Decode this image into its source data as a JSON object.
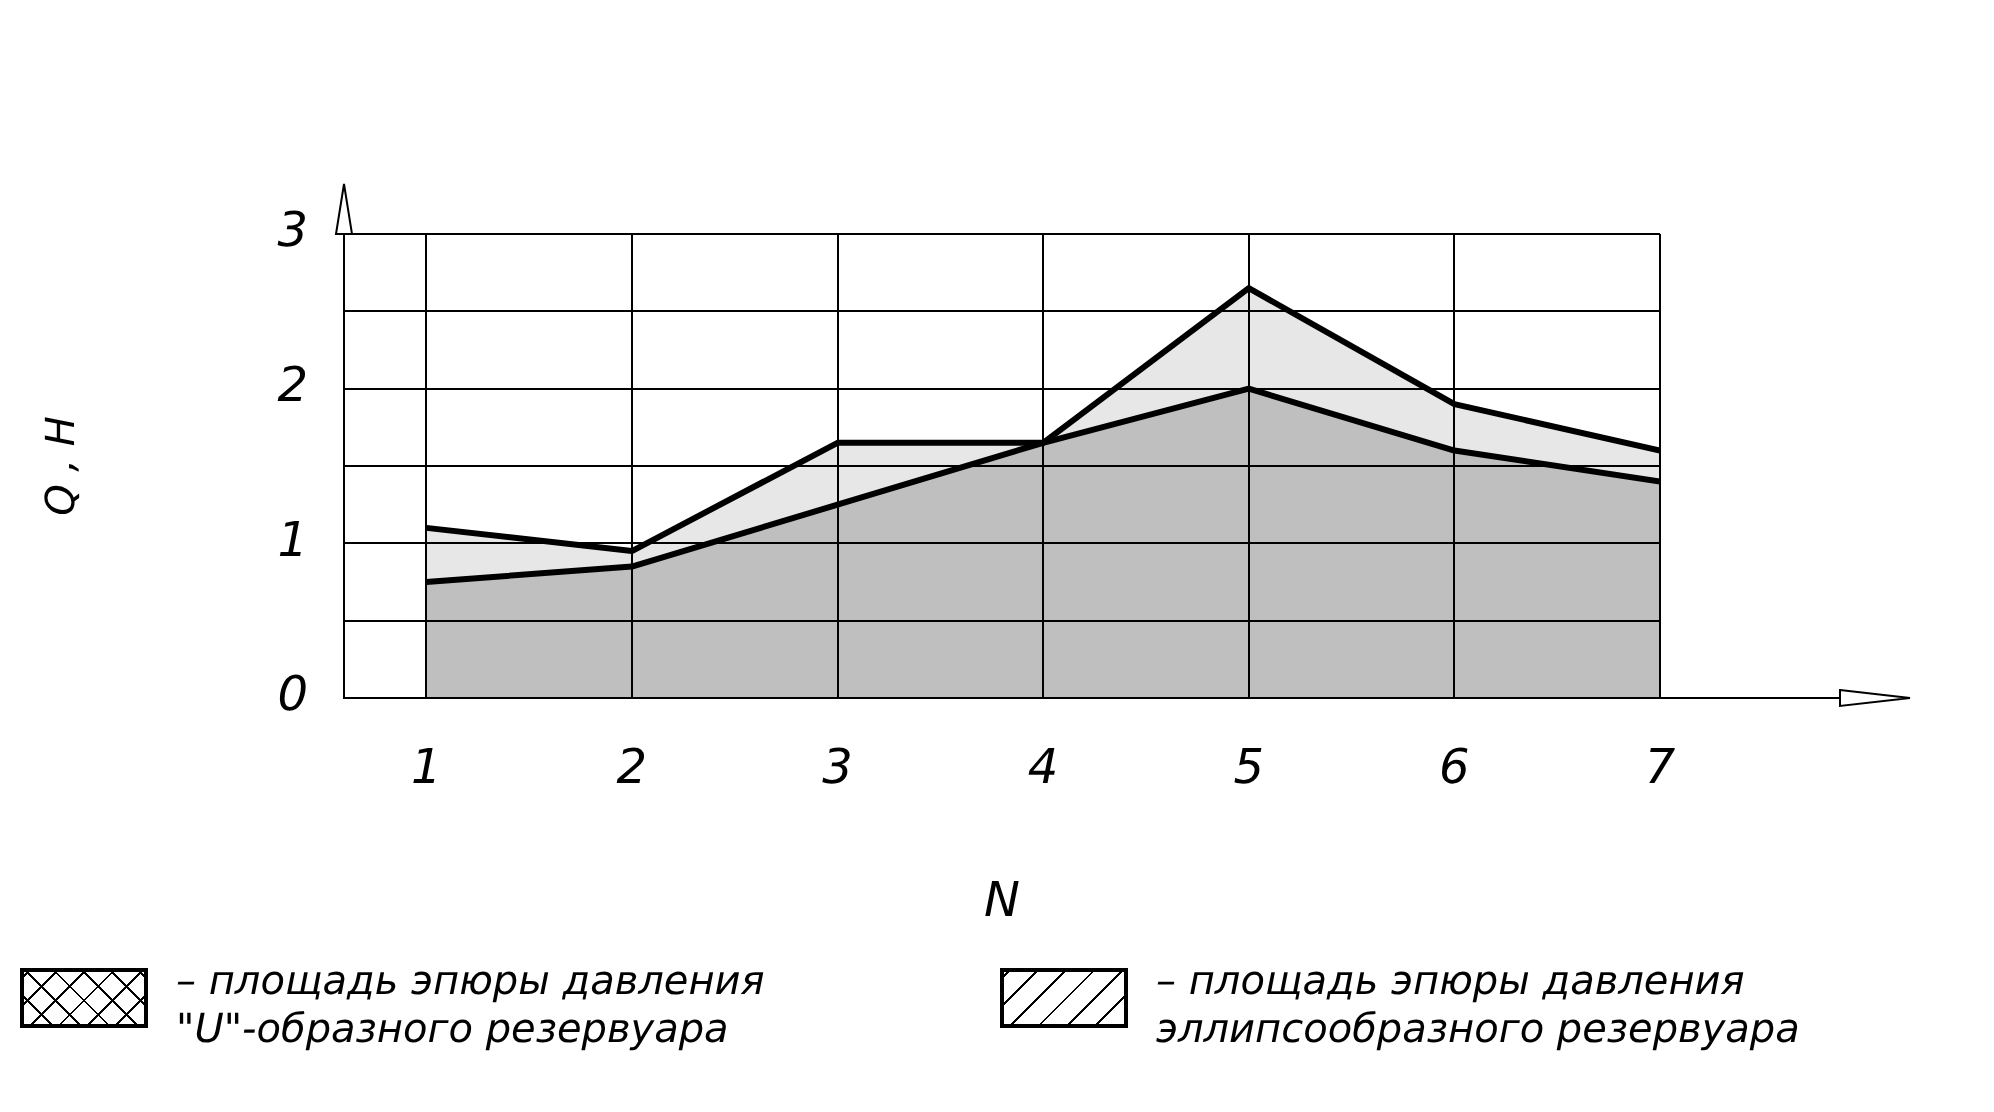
{
  "chart_data": {
    "type": "area",
    "xlabel": "N",
    "ylabel": "Q , H",
    "x": [
      1,
      2,
      3,
      4,
      5,
      6,
      7
    ],
    "series": [
      {
        "name": "– площадь эпюры давления \"U\"-образного резервуара",
        "color": "#000000",
        "values": [
          0.75,
          0.85,
          1.25,
          1.65,
          2.0,
          1.6,
          1.4
        ]
      },
      {
        "name": "– площадь эпюры давления эллипсообразного резервуара",
        "color": "#000000",
        "values": [
          1.1,
          0.95,
          1.65,
          1.65,
          2.65,
          1.9,
          1.6
        ]
      }
    ],
    "xlim": [
      0.6,
      7
    ],
    "xticks": [
      1,
      2,
      3,
      4,
      5,
      6,
      7
    ],
    "ylim": [
      0,
      3
    ],
    "yticks": [
      0,
      {
        "value": 0.5,
        "label": null
      },
      1,
      {
        "value": 1.5,
        "label": null
      },
      2,
      {
        "value": 2.5,
        "label": null
      },
      3
    ],
    "grid": true,
    "legend": "bottom",
    "marker": "none",
    "line_style": "solid"
  }
}
